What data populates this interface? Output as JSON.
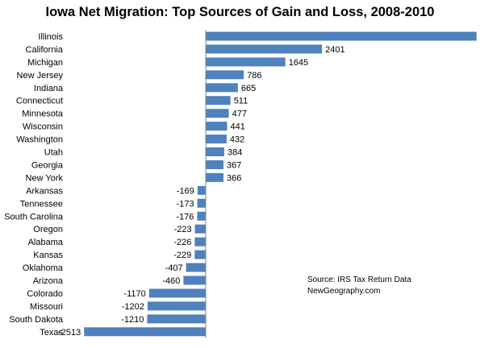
{
  "chart_data": {
    "type": "bar",
    "orientation": "horizontal",
    "title": "Iowa Net Migration: Top Sources of Gain and Loss, 2008-2010",
    "categories": [
      "Illinois",
      "California",
      "Michigan",
      "New Jersey",
      "Indiana",
      "Connecticut",
      "Minnesota",
      "Wisconsin",
      "Washington",
      "Utah",
      "Georgia",
      "New York",
      "Arkansas",
      "Tennessee",
      "South Carolina",
      "Oregon",
      "Alabama",
      "Kansas",
      "Oklahoma",
      "Arizona",
      "Colorado",
      "Missouri",
      "South Dakota",
      "Texas"
    ],
    "values": [
      5593,
      2401,
      1645,
      786,
      665,
      511,
      477,
      441,
      432,
      384,
      367,
      366,
      -169,
      -173,
      -176,
      -223,
      -226,
      -229,
      -407,
      -460,
      -1170,
      -1202,
      -1210,
      -2513
    ],
    "xlim": [
      -2600,
      5900
    ],
    "grid": false,
    "legend": "none",
    "bar_color": "#4f81bd",
    "axis_color": "#868686",
    "annotations": [
      "Source: IRS Tax Return Data",
      "NewGeography.com"
    ]
  }
}
